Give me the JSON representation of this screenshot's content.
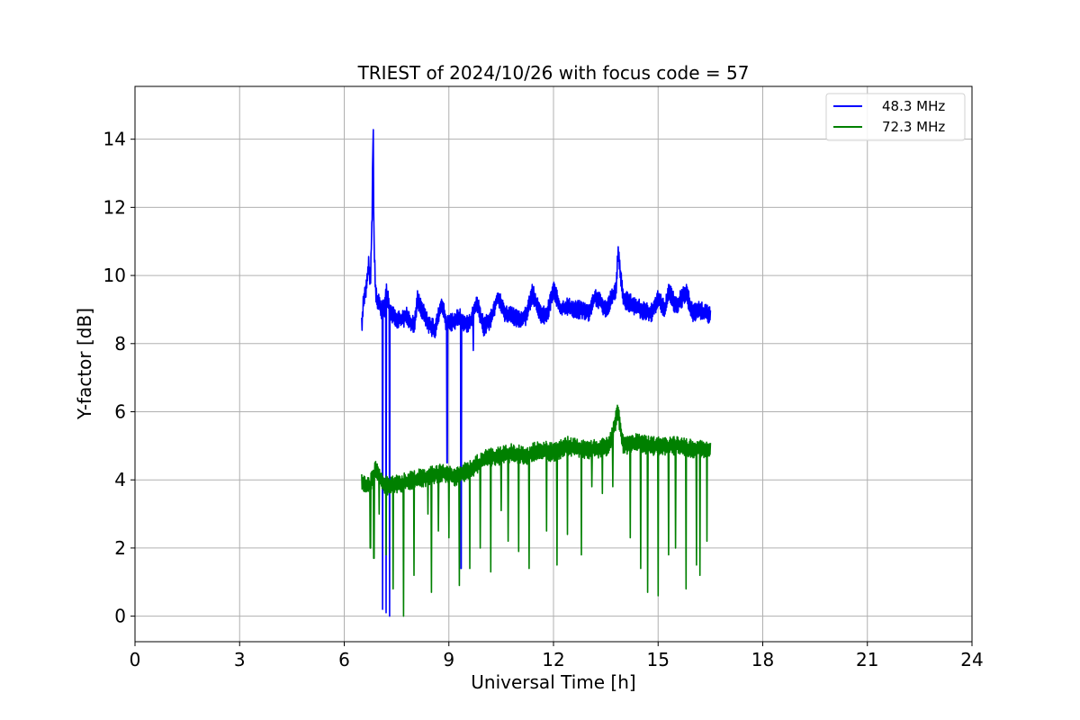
{
  "chart_data": {
    "type": "line",
    "title": "TRIEST of 2024/10/26 with focus code = 57",
    "xlabel": "Universal Time [h]",
    "ylabel": "Y-factor [dB]",
    "xlim": [
      0,
      24
    ],
    "ylim": [
      -0.75,
      15.55
    ],
    "xticks": [
      0,
      3,
      6,
      9,
      12,
      15,
      18,
      21,
      24
    ],
    "yticks": [
      0,
      2,
      4,
      6,
      8,
      10,
      12,
      14
    ],
    "grid": true,
    "legend_position": "top-right",
    "series": [
      {
        "name": "48.3 MHz",
        "color": "#0000ff",
        "x": [
          6.5,
          6.55,
          6.6,
          6.65,
          6.7,
          6.75,
          6.8,
          6.83,
          6.85,
          6.9,
          6.95,
          7.0,
          7.05,
          7.1,
          7.15,
          7.2,
          7.3,
          7.4,
          7.6,
          7.8,
          8.0,
          8.1,
          8.4,
          8.6,
          8.8,
          8.9,
          9.0,
          9.2,
          9.3,
          9.4,
          9.6,
          9.8,
          10.0,
          10.2,
          10.4,
          10.6,
          10.8,
          11.0,
          11.2,
          11.4,
          11.6,
          11.8,
          12.0,
          12.2,
          12.4,
          12.6,
          12.8,
          13.0,
          13.2,
          13.5,
          13.8,
          13.85,
          14.0,
          14.2,
          14.5,
          14.8,
          15.0,
          15.2,
          15.3,
          15.5,
          15.8,
          16.0,
          16.2,
          16.5
        ],
        "y": [
          8.5,
          9.2,
          9.5,
          9.8,
          10.4,
          9.8,
          11.8,
          14.8,
          11.0,
          9.5,
          9.2,
          9.3,
          8.9,
          9.1,
          9.0,
          9.6,
          9.0,
          8.8,
          8.7,
          8.8,
          8.5,
          9.3,
          8.6,
          8.4,
          9.2,
          8.7,
          8.6,
          8.7,
          8.8,
          8.6,
          8.6,
          9.2,
          8.5,
          8.7,
          9.4,
          8.9,
          8.8,
          8.7,
          8.8,
          9.5,
          8.9,
          8.8,
          9.6,
          9.0,
          9.1,
          9.0,
          9.0,
          8.9,
          9.4,
          9.0,
          9.6,
          10.7,
          9.3,
          9.2,
          9.0,
          8.9,
          9.3,
          9.0,
          9.6,
          9.1,
          9.5,
          8.9,
          9.0,
          8.8
        ],
        "dips": [
          [
            7.1,
            0.2
          ],
          [
            7.2,
            0.1
          ],
          [
            7.3,
            0.0
          ],
          [
            8.95,
            4.5
          ],
          [
            9.35,
            1.4
          ],
          [
            9.7,
            7.8
          ]
        ]
      },
      {
        "name": "72.3 MHz",
        "color": "#008000",
        "x": [
          6.5,
          6.7,
          6.9,
          7.1,
          7.3,
          7.6,
          8.0,
          8.4,
          8.8,
          9.2,
          9.6,
          10.0,
          10.4,
          10.8,
          11.2,
          11.6,
          12.0,
          12.4,
          12.8,
          13.2,
          13.6,
          13.85,
          14.0,
          14.4,
          14.8,
          15.2,
          15.6,
          16.0,
          16.5
        ],
        "y": [
          3.9,
          3.8,
          4.3,
          3.9,
          3.8,
          3.9,
          4.0,
          4.1,
          4.2,
          4.1,
          4.3,
          4.6,
          4.7,
          4.8,
          4.7,
          4.9,
          4.8,
          5.0,
          4.9,
          4.9,
          5.0,
          6.0,
          5.0,
          5.1,
          5.0,
          5.0,
          5.0,
          4.9,
          4.9
        ],
        "dips": [
          [
            6.75,
            2.0
          ],
          [
            6.85,
            1.7
          ],
          [
            7.0,
            3.0
          ],
          [
            7.2,
            1.8
          ],
          [
            7.4,
            0.8
          ],
          [
            7.7,
            0.0
          ],
          [
            8.0,
            1.2
          ],
          [
            8.4,
            3.0
          ],
          [
            8.5,
            0.7
          ],
          [
            8.7,
            2.5
          ],
          [
            9.0,
            2.3
          ],
          [
            9.3,
            0.9
          ],
          [
            9.6,
            1.4
          ],
          [
            9.9,
            2.0
          ],
          [
            10.2,
            1.3
          ],
          [
            10.5,
            3.1
          ],
          [
            10.7,
            2.2
          ],
          [
            11.0,
            1.9
          ],
          [
            11.3,
            1.4
          ],
          [
            11.8,
            2.5
          ],
          [
            12.1,
            1.5
          ],
          [
            12.4,
            2.4
          ],
          [
            12.8,
            1.8
          ],
          [
            13.1,
            3.8
          ],
          [
            13.4,
            3.6
          ],
          [
            13.7,
            3.8
          ],
          [
            14.2,
            2.3
          ],
          [
            14.5,
            1.4
          ],
          [
            14.7,
            0.7
          ],
          [
            15.0,
            0.6
          ],
          [
            15.3,
            1.8
          ],
          [
            15.5,
            2.0
          ],
          [
            15.8,
            0.8
          ],
          [
            16.1,
            1.5
          ],
          [
            16.2,
            1.2
          ],
          [
            16.4,
            2.2
          ]
        ]
      }
    ]
  }
}
